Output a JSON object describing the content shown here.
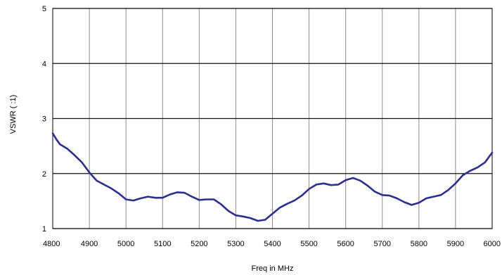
{
  "chart_data": {
    "type": "line",
    "title": "",
    "xlabel": "Freq in MHz",
    "ylabel": "VSWR ( :1)",
    "xlim": [
      4800,
      6000
    ],
    "ylim": [
      1,
      5
    ],
    "x_ticks": [
      4800,
      4900,
      5000,
      5100,
      5200,
      5300,
      5400,
      5500,
      5600,
      5700,
      5800,
      5900,
      6000
    ],
    "x_tick_labels": [
      "4800",
      "4900",
      "5000",
      "5100",
      "5200",
      "5300",
      "5400",
      "5500",
      "5600",
      "5700",
      "5800",
      "5900",
      "6000"
    ],
    "y_ticks": [
      1,
      2,
      3,
      4,
      5
    ],
    "y_tick_labels": [
      "1",
      "2",
      "3",
      "4",
      "5"
    ],
    "grid": true,
    "legend": "none",
    "series": [
      {
        "color": "#2b2f8f",
        "x": [
          4800,
          4810,
          4820,
          4840,
          4860,
          4880,
          4900,
          4920,
          4940,
          4960,
          4980,
          5000,
          5020,
          5040,
          5060,
          5080,
          5100,
          5120,
          5140,
          5160,
          5180,
          5200,
          5220,
          5240,
          5260,
          5280,
          5300,
          5320,
          5340,
          5360,
          5380,
          5400,
          5420,
          5440,
          5460,
          5480,
          5500,
          5520,
          5540,
          5560,
          5580,
          5600,
          5620,
          5640,
          5660,
          5680,
          5700,
          5720,
          5740,
          5760,
          5780,
          5800,
          5820,
          5840,
          5860,
          5880,
          5900,
          5920,
          5940,
          5960,
          5980,
          6000
        ],
        "y": [
          2.73,
          2.62,
          2.53,
          2.45,
          2.33,
          2.2,
          2.02,
          1.87,
          1.8,
          1.73,
          1.64,
          1.53,
          1.51,
          1.55,
          1.58,
          1.56,
          1.56,
          1.62,
          1.66,
          1.65,
          1.58,
          1.52,
          1.53,
          1.53,
          1.44,
          1.32,
          1.24,
          1.22,
          1.19,
          1.14,
          1.16,
          1.27,
          1.38,
          1.45,
          1.51,
          1.6,
          1.72,
          1.8,
          1.82,
          1.79,
          1.8,
          1.88,
          1.92,
          1.87,
          1.78,
          1.67,
          1.61,
          1.6,
          1.55,
          1.48,
          1.43,
          1.47,
          1.55,
          1.58,
          1.61,
          1.7,
          1.82,
          1.97,
          2.05,
          2.11,
          2.2,
          2.38
        ]
      }
    ]
  }
}
